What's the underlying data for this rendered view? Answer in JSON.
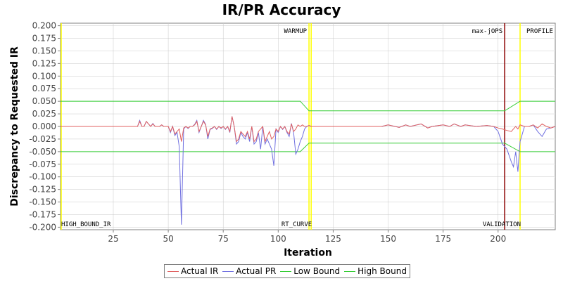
{
  "chart_data": {
    "type": "line",
    "title": "IR/PR Accuracy",
    "xlabel": "Iteration",
    "ylabel": "Discrepancy to Requested IR",
    "xlim": [
      1,
      226
    ],
    "ylim": [
      -0.205,
      0.205
    ],
    "xticks": [
      25,
      50,
      75,
      100,
      125,
      150,
      175,
      200
    ],
    "yticks": [
      0.2,
      0.175,
      0.15,
      0.125,
      0.1,
      0.075,
      0.05,
      0.025,
      0.0,
      -0.025,
      -0.05,
      -0.075,
      -0.1,
      -0.125,
      -0.15,
      -0.175,
      -0.2
    ],
    "ytick_labels": [
      "0.200",
      "0.175",
      "0.150",
      "0.125",
      "0.100",
      "0.075",
      "0.050",
      "0.025",
      "0.000",
      "-0.025",
      "-0.050",
      "-0.075",
      "-0.100",
      "-0.125",
      "-0.150",
      "-0.175",
      "-0.200"
    ],
    "grid": true,
    "legend_position": "bottom",
    "phase_markers": [
      {
        "label": "HIGH_BOUND_IR",
        "x": 1,
        "color": "#ffff00",
        "label_position": "bottom"
      },
      {
        "label": "WARMUP",
        "x": 114,
        "color": "#ffff00",
        "label_position": "top"
      },
      {
        "label": "RT_CURVE",
        "x": 115,
        "color": "#ffff00",
        "label_position": "bottom"
      },
      {
        "label": "max-jOPS",
        "x": 203,
        "color": "#8b0000",
        "label_position": "top"
      },
      {
        "label": "VALIDATION",
        "x": 210,
        "color": "#ffff00",
        "label_position": "bottom"
      },
      {
        "label": "PROFILE",
        "x": 210,
        "color": "#ffff00",
        "label_position": "top-right"
      }
    ],
    "series": [
      {
        "name": "Actual IR",
        "color": "#e06060",
        "x": [
          1,
          36,
          37,
          38,
          39,
          40,
          41,
          42,
          43,
          44,
          45,
          46,
          47,
          48,
          49,
          50,
          51,
          52,
          53,
          54,
          55,
          56,
          57,
          58,
          59,
          60,
          61,
          62,
          63,
          64,
          65,
          66,
          67,
          68,
          69,
          70,
          71,
          72,
          73,
          74,
          75,
          76,
          77,
          78,
          79,
          80,
          81,
          82,
          83,
          84,
          85,
          86,
          87,
          88,
          89,
          90,
          91,
          92,
          93,
          94,
          95,
          96,
          97,
          98,
          99,
          100,
          101,
          102,
          103,
          104,
          105,
          106,
          107,
          108,
          109,
          110,
          111,
          112,
          113,
          114,
          115,
          143,
          147,
          150,
          155,
          158,
          160,
          165,
          168,
          170,
          175,
          178,
          180,
          183,
          185,
          190,
          195,
          198,
          200,
          202,
          204,
          206,
          207,
          208,
          209,
          210,
          212,
          214,
          216,
          218,
          220,
          222,
          224,
          226
        ],
        "y": [
          0.0,
          0.0,
          0.01,
          0.0,
          0.0,
          0.01,
          0.005,
          0.0,
          0.005,
          0.0,
          0.0,
          0.0,
          0.003,
          0.0,
          0.0,
          0.0,
          -0.01,
          0.0,
          -0.015,
          -0.01,
          -0.005,
          -0.03,
          -0.003,
          0.0,
          -0.003,
          0.0,
          0.0,
          0.003,
          0.01,
          -0.01,
          0.0,
          0.01,
          0.003,
          -0.02,
          -0.005,
          -0.003,
          0.0,
          -0.005,
          0.0,
          -0.003,
          0.0,
          -0.005,
          0.0,
          -0.01,
          0.02,
          0.0,
          -0.03,
          -0.025,
          -0.01,
          -0.015,
          -0.02,
          -0.01,
          -0.025,
          0.0,
          -0.03,
          -0.025,
          -0.01,
          -0.005,
          0.0,
          -0.03,
          -0.02,
          -0.01,
          -0.025,
          -0.02,
          -0.005,
          -0.01,
          0.0,
          -0.005,
          0.0,
          -0.01,
          -0.015,
          0.005,
          -0.01,
          -0.005,
          0.003,
          0.0,
          0.003,
          0.0,
          0.0,
          0.002,
          0.0,
          0.0,
          0.0,
          0.003,
          -0.002,
          0.003,
          0.0,
          0.005,
          -0.003,
          0.0,
          0.003,
          0.0,
          0.005,
          0.0,
          0.003,
          0.0,
          0.002,
          0.0,
          -0.003,
          -0.005,
          -0.008,
          -0.01,
          -0.005,
          0.0,
          -0.005,
          0.003,
          0.0,
          0.0,
          0.003,
          -0.003,
          0.005,
          0.0,
          -0.003,
          0.0
        ]
      },
      {
        "name": "Actual PR",
        "color": "#7070e0",
        "x": [
          1,
          36,
          37,
          38,
          39,
          40,
          41,
          42,
          43,
          44,
          45,
          46,
          47,
          48,
          49,
          50,
          51,
          52,
          53,
          54,
          55,
          56,
          57,
          58,
          59,
          60,
          61,
          62,
          63,
          64,
          65,
          66,
          67,
          68,
          69,
          70,
          71,
          72,
          73,
          74,
          75,
          76,
          77,
          78,
          79,
          80,
          81,
          82,
          83,
          84,
          85,
          86,
          87,
          88,
          89,
          90,
          91,
          92,
          93,
          94,
          95,
          96,
          97,
          98,
          99,
          100,
          101,
          102,
          103,
          104,
          105,
          106,
          107,
          108,
          109,
          110,
          111,
          112,
          113,
          114,
          115,
          143,
          147,
          150,
          155,
          158,
          160,
          165,
          168,
          170,
          175,
          178,
          180,
          183,
          185,
          190,
          195,
          198,
          200,
          202,
          204,
          206,
          207,
          208,
          209,
          210,
          212,
          214,
          216,
          218,
          220,
          222,
          224,
          226
        ],
        "y": [
          0.0,
          0.0,
          0.012,
          0.0,
          0.0,
          0.01,
          0.005,
          0.0,
          0.006,
          0.0,
          0.0,
          0.0,
          0.003,
          0.0,
          0.0,
          0.0,
          -0.012,
          0.0,
          -0.018,
          -0.012,
          -0.04,
          -0.195,
          -0.005,
          0.0,
          -0.004,
          0.0,
          0.0,
          0.004,
          0.012,
          -0.012,
          0.0,
          0.012,
          0.004,
          -0.025,
          -0.006,
          -0.004,
          0.0,
          -0.006,
          0.0,
          -0.004,
          0.0,
          -0.006,
          0.0,
          -0.012,
          0.02,
          0.0,
          -0.035,
          -0.03,
          -0.012,
          -0.02,
          -0.025,
          -0.012,
          -0.03,
          0.0,
          -0.035,
          -0.03,
          -0.012,
          -0.045,
          0.0,
          -0.035,
          -0.025,
          -0.035,
          -0.045,
          -0.078,
          -0.005,
          -0.012,
          0.0,
          -0.006,
          0.0,
          -0.012,
          -0.02,
          0.006,
          -0.012,
          -0.055,
          -0.045,
          -0.03,
          -0.02,
          -0.005,
          0.0,
          0.002,
          0.0,
          0.0,
          0.0,
          0.003,
          -0.002,
          0.003,
          0.0,
          0.005,
          -0.003,
          0.0,
          0.003,
          0.0,
          0.005,
          0.0,
          0.003,
          0.0,
          0.002,
          0.0,
          -0.01,
          -0.035,
          -0.045,
          -0.07,
          -0.08,
          -0.05,
          -0.09,
          -0.03,
          0.0,
          0.0,
          0.003,
          -0.01,
          -0.02,
          -0.005,
          -0.003,
          0.0
        ]
      },
      {
        "name": "Low Bound",
        "color": "#33cc33",
        "x": [
          1,
          110,
          114,
          203,
          210,
          226
        ],
        "y": [
          -0.05,
          -0.05,
          -0.033,
          -0.033,
          -0.05,
          -0.05
        ]
      },
      {
        "name": "High Bound",
        "color": "#33cc33",
        "x": [
          1,
          110,
          114,
          203,
          210,
          226
        ],
        "y": [
          0.05,
          0.05,
          0.031,
          0.031,
          0.05,
          0.05
        ]
      }
    ]
  }
}
